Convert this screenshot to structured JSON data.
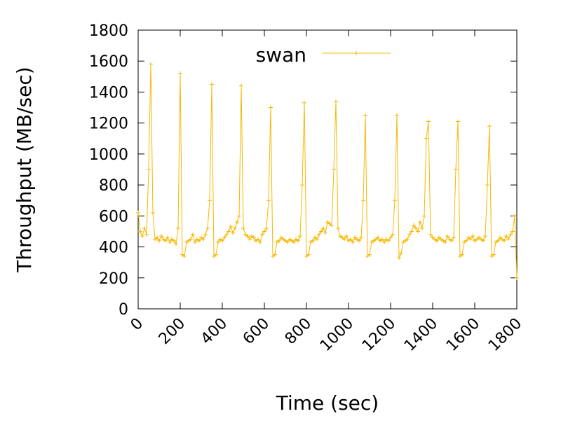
{
  "chart_data": {
    "type": "line",
    "xlabel": "Time (sec)",
    "ylabel": "Throughput (MB/sec)",
    "xlim": [
      0,
      1800
    ],
    "xticks": [
      0,
      200,
      400,
      600,
      800,
      1000,
      1200,
      1400,
      1600,
      1800
    ],
    "ylim": [
      0,
      1800
    ],
    "yticks": [
      0,
      200,
      400,
      600,
      800,
      1000,
      1200,
      1400,
      1600,
      1800
    ],
    "legend": "top",
    "series": [
      {
        "name": "swan",
        "color": "#f5b800",
        "x": [
          0,
          10,
          20,
          30,
          40,
          50,
          60,
          70,
          80,
          90,
          100,
          110,
          120,
          130,
          140,
          150,
          160,
          170,
          180,
          190,
          200,
          210,
          220,
          230,
          240,
          250,
          260,
          270,
          280,
          290,
          300,
          310,
          320,
          330,
          340,
          350,
          360,
          370,
          380,
          390,
          400,
          410,
          420,
          430,
          440,
          450,
          460,
          470,
          480,
          490,
          500,
          510,
          520,
          530,
          540,
          550,
          560,
          570,
          580,
          590,
          600,
          610,
          620,
          630,
          640,
          650,
          660,
          670,
          680,
          690,
          700,
          710,
          720,
          730,
          740,
          750,
          760,
          770,
          780,
          790,
          800,
          810,
          820,
          830,
          840,
          850,
          860,
          870,
          880,
          890,
          900,
          910,
          920,
          930,
          940,
          950,
          960,
          970,
          980,
          990,
          1000,
          1010,
          1020,
          1030,
          1040,
          1050,
          1060,
          1070,
          1080,
          1090,
          1100,
          1110,
          1120,
          1130,
          1140,
          1150,
          1160,
          1170,
          1180,
          1190,
          1200,
          1210,
          1220,
          1230,
          1240,
          1250,
          1260,
          1270,
          1280,
          1290,
          1300,
          1310,
          1320,
          1330,
          1340,
          1350,
          1360,
          1370,
          1380,
          1390,
          1400,
          1410,
          1420,
          1430,
          1440,
          1450,
          1460,
          1470,
          1480,
          1490,
          1500,
          1510,
          1520,
          1530,
          1540,
          1550,
          1560,
          1570,
          1580,
          1590,
          1600,
          1610,
          1620,
          1630,
          1640,
          1650,
          1660,
          1670,
          1680,
          1690,
          1700,
          1710,
          1720,
          1730,
          1740,
          1750,
          1760,
          1770,
          1780,
          1790,
          1800
        ],
        "values": [
          620,
          500,
          470,
          520,
          480,
          900,
          1580,
          620,
          450,
          460,
          440,
          470,
          450,
          440,
          460,
          430,
          450,
          440,
          420,
          520,
          1520,
          350,
          340,
          430,
          440,
          450,
          480,
          430,
          450,
          440,
          460,
          450,
          480,
          520,
          700,
          1450,
          340,
          350,
          430,
          450,
          440,
          460,
          480,
          500,
          530,
          490,
          520,
          560,
          600,
          1440,
          520,
          480,
          470,
          450,
          470,
          460,
          440,
          450,
          430,
          480,
          500,
          520,
          700,
          1300,
          340,
          350,
          430,
          440,
          460,
          450,
          440,
          430,
          450,
          440,
          430,
          450,
          440,
          470,
          800,
          1330,
          340,
          350,
          430,
          440,
          460,
          450,
          480,
          500,
          520,
          490,
          560,
          550,
          540,
          900,
          1340,
          520,
          470,
          460,
          450,
          470,
          440,
          450,
          430,
          460,
          450,
          440,
          460,
          700,
          1250,
          340,
          350,
          430,
          440,
          450,
          460,
          440,
          450,
          430,
          450,
          440,
          460,
          480,
          700,
          1250,
          330,
          360,
          430,
          440,
          450,
          480,
          500,
          540,
          520,
          500,
          560,
          520,
          600,
          1100,
          1210,
          480,
          460,
          450,
          440,
          460,
          450,
          440,
          430,
          470,
          450,
          440,
          460,
          900,
          1210,
          340,
          350,
          430,
          440,
          460,
          450,
          470,
          440,
          450,
          460,
          450,
          440,
          470,
          800,
          1180,
          340,
          350,
          430,
          440,
          460,
          450,
          440,
          470,
          450,
          480,
          500,
          600,
          200
        ]
      }
    ]
  }
}
